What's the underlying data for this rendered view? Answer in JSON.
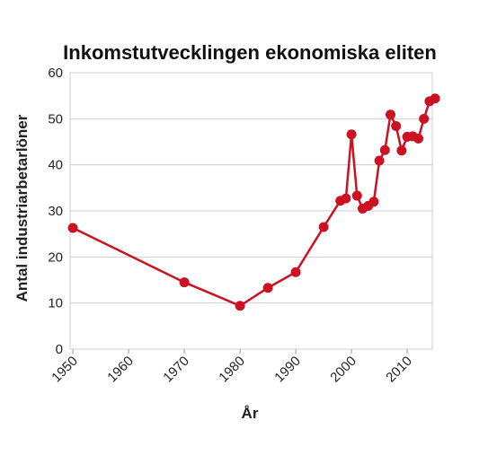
{
  "chart_data": {
    "type": "line",
    "title": "Inkomstutvecklingen ekonomiska eliten",
    "xlabel": "År",
    "ylabel": "Antal industriarbetarlöner",
    "xlim": [
      1949.5,
      2014.5
    ],
    "ylim": [
      0,
      60
    ],
    "x_ticks": [
      1950,
      1960,
      1970,
      1980,
      1990,
      2000,
      2010
    ],
    "y_ticks": [
      0,
      10,
      20,
      30,
      40,
      50,
      60
    ],
    "grid": "horizontal",
    "legend": "none",
    "color": "#cc1122",
    "series": [
      {
        "x": [
          1950,
          1970,
          1980,
          1985,
          1990,
          1995,
          1998,
          1999,
          2000,
          2001,
          2002,
          2003,
          2004,
          2005,
          2006,
          2007,
          2008,
          2009,
          2010,
          2011,
          2012,
          2013,
          2014,
          2015
        ],
        "values": [
          26.3,
          14.5,
          9.4,
          13.3,
          16.7,
          26.5,
          32.2,
          32.7,
          46.6,
          33.3,
          30.5,
          31.1,
          32.0,
          40.9,
          43.2,
          50.9,
          48.4,
          43.1,
          46.1,
          46.2,
          45.7,
          50.0,
          53.8,
          54.4
        ]
      }
    ]
  }
}
